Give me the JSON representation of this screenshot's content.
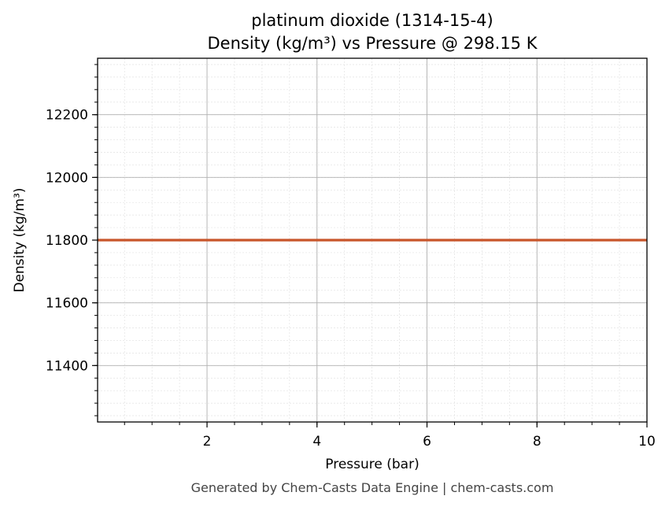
{
  "chart_data": {
    "type": "line",
    "title": "platinum dioxide (1314-15-4)",
    "subtitle": "Density (kg/m³) vs Pressure @ 298.15 K",
    "xlabel": "Pressure (bar)",
    "ylabel": "Density (kg/m³)",
    "xlim": [
      0.01,
      10
    ],
    "ylim": [
      11220,
      12380
    ],
    "x_ticks": [
      2,
      4,
      6,
      8,
      10
    ],
    "y_ticks": [
      11400,
      11600,
      11800,
      12000,
      12200
    ],
    "grid": true,
    "series": [
      {
        "color": "#c8552a",
        "x": [
          0.01,
          1,
          2,
          3,
          4,
          5,
          6,
          7,
          8,
          9,
          10
        ],
        "y": [
          11800,
          11800,
          11800,
          11800,
          11800,
          11800,
          11800,
          11800,
          11800,
          11800,
          11800
        ]
      }
    ]
  },
  "footer": "Generated by Chem-Casts Data Engine | chem-casts.com"
}
